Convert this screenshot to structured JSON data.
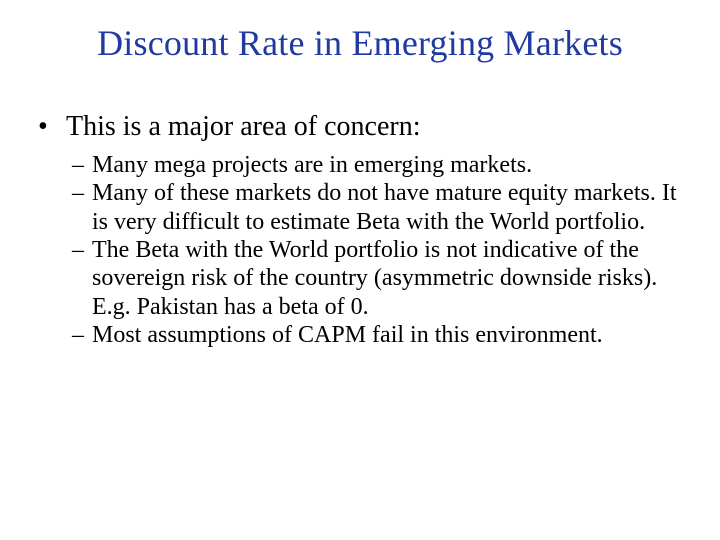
{
  "slide": {
    "title": "Discount Rate in Emerging Markets",
    "title_color": "#1f3aa0",
    "title_fontsize": 36,
    "background_color": "#ffffff",
    "body_color": "#000000",
    "level1_fontsize": 28,
    "level2_fontsize": 24,
    "line_height": 1.18,
    "bullets": [
      {
        "text": "This is a major area of concern:",
        "sub": [
          "Many mega projects are in emerging markets.",
          "Many of these markets do not have mature equity markets. It is very difficult to estimate Beta with the World portfolio.",
          "The Beta with the World portfolio is not indicative of the sovereign risk of the country (asymmetric downside risks). E.g. Pakistan has a beta of 0.",
          "Most assumptions of CAPM fail in this environment."
        ]
      }
    ]
  }
}
